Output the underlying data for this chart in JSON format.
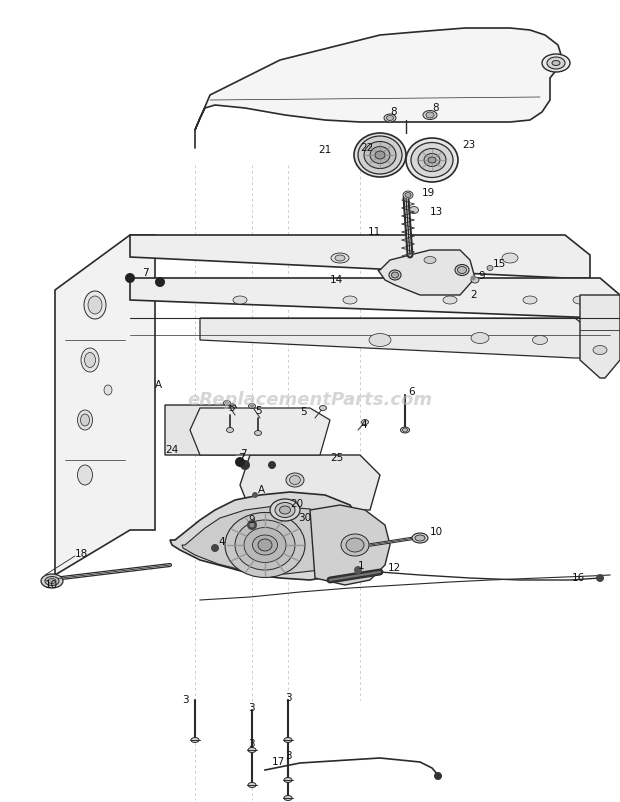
{
  "bg_color": "#ffffff",
  "line_color": "#2a2a2a",
  "watermark": "eReplacementParts.com",
  "watermark_color": "#bbbbbb",
  "fig_w": 6.2,
  "fig_h": 8.02,
  "dpi": 100
}
